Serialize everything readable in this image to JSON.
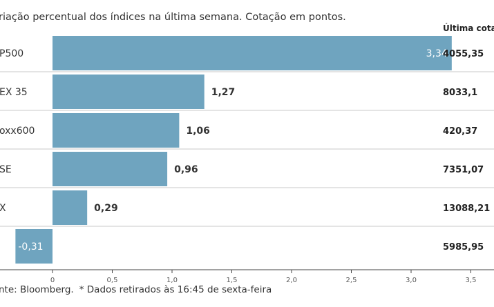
{
  "subtitle": "riação percentual dos índices na última semana. Cotação em pontos.",
  "column_header": "Última cotaç",
  "footer": {
    "source": "nte: Bloomberg.",
    "note": "* Dados retirados às 16:45 de sexta-feira"
  },
  "colors": {
    "bar": "#6fa4bf",
    "grid": "#c8c8c8",
    "axis": "#444444"
  },
  "chart_data": {
    "type": "bar",
    "orientation": "horizontal",
    "categories": [
      "P500",
      "EX 35",
      "oxx600",
      "SE",
      "X",
      ""
    ],
    "values": [
      3.34,
      1.27,
      1.06,
      0.96,
      0.29,
      -0.31
    ],
    "value_labels": [
      "3,34",
      "1,27",
      "1,06",
      "0,96",
      "0,29",
      "-0,31"
    ],
    "last_quote": [
      "4055,35",
      "8033,1",
      "420,37",
      "7351,07",
      "13088,21",
      "5985,95"
    ],
    "xlim": [
      -0.31,
      3.7
    ],
    "xticks": [
      0,
      0.5,
      1.0,
      1.5,
      2.0,
      2.5,
      3.0,
      3.5
    ],
    "xtick_labels": [
      "0",
      "0,5",
      "1,0",
      "1,5",
      "2,0",
      "2,5",
      "3,0",
      "3,5"
    ],
    "grid": true
  }
}
